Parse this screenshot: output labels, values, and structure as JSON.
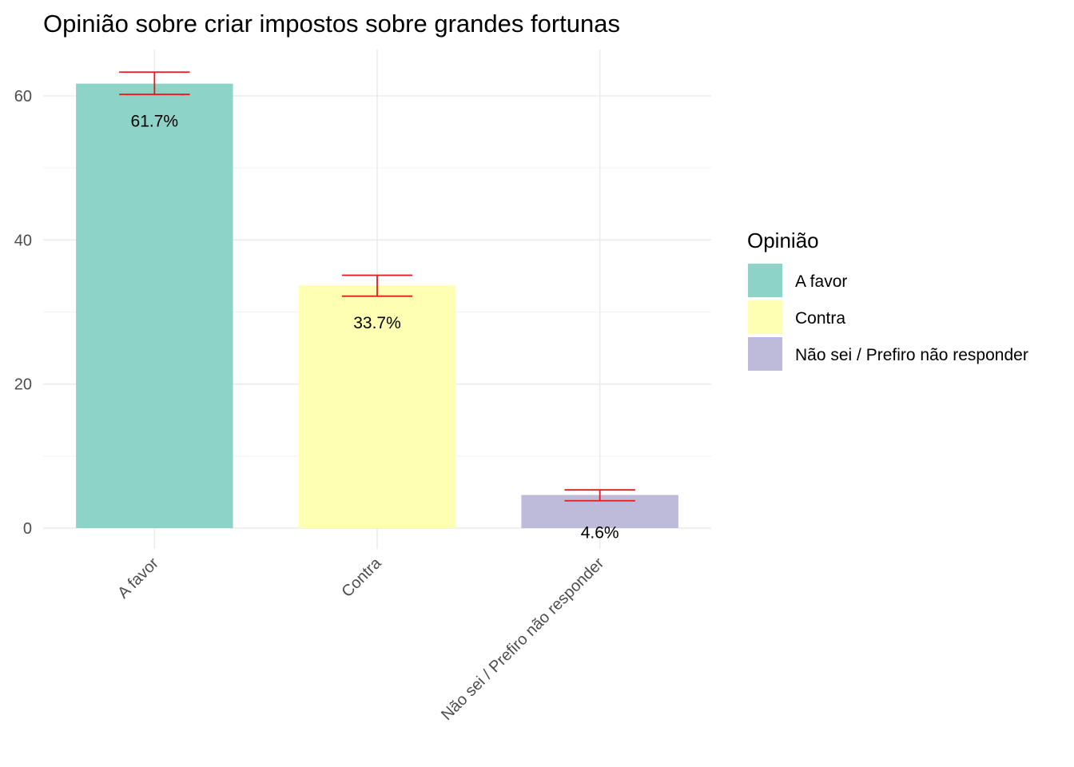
{
  "chart_data": {
    "type": "bar",
    "title": "Opinião sobre criar impostos sobre grandes fortunas",
    "xlabel": "",
    "ylabel": "",
    "categories": [
      "A favor",
      "Contra",
      "Não sei / Prefiro não responder"
    ],
    "values": [
      61.7,
      33.7,
      4.6
    ],
    "data_labels": [
      "61.7%",
      "33.7%",
      "4.6%"
    ],
    "error_bars": [
      {
        "low": 60.2,
        "high": 63.3
      },
      {
        "low": 32.2,
        "high": 35.1
      },
      {
        "low": 3.8,
        "high": 5.3
      }
    ],
    "colors": [
      "#8DD3C7",
      "#FFFFB3",
      "#BEBADA"
    ],
    "error_bar_color": "#E41A1C",
    "ylim": [
      0,
      63.8
    ],
    "yticks": [
      0,
      20,
      40,
      60
    ],
    "grid": true,
    "legend": {
      "title": "Opinião",
      "placement": "right",
      "entries": [
        "A favor",
        "Contra",
        "Não sei / Prefiro não responder"
      ]
    }
  }
}
